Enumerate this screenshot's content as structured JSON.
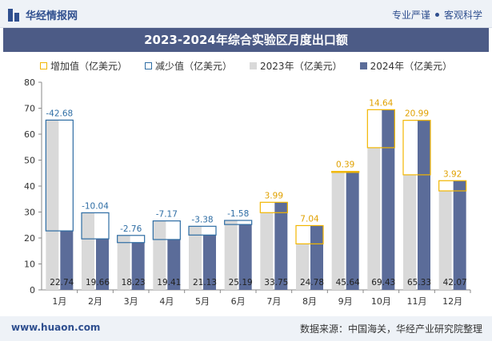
{
  "header": {
    "logo_text": "华经情报网",
    "slogan_left": "专业严谨",
    "slogan_right": "客观科学"
  },
  "footer": {
    "website": "www.huaon.com",
    "source": "数据来源：中国海关，华经产业研究院整理"
  },
  "colors": {
    "increase": "#f2b600",
    "decrease": "#2e6da4",
    "bar2023": "#d9d9d9",
    "bar2024": "#5b6c99",
    "title_bg": "#4c5b86"
  },
  "chart_data": {
    "type": "bar",
    "title": "2023-2024年综合实验区月度出口额",
    "categories": [
      "1月",
      "2月",
      "3月",
      "4月",
      "5月",
      "6月",
      "7月",
      "8月",
      "9月",
      "10月",
      "11月",
      "12月"
    ],
    "series": [
      {
        "name": "2023年（亿美元）",
        "values": [
          65.42,
          29.7,
          20.99,
          26.58,
          24.51,
          26.77,
          29.76,
          17.74,
          45.25,
          54.79,
          44.34,
          38.15
        ]
      },
      {
        "name": "2024年（亿美元）",
        "values": [
          22.74,
          19.66,
          18.23,
          19.41,
          21.13,
          25.19,
          33.75,
          24.78,
          45.64,
          69.43,
          65.33,
          42.07
        ]
      }
    ],
    "change": [
      -42.68,
      -10.04,
      -2.76,
      -7.17,
      -3.38,
      -1.58,
      3.99,
      7.04,
      0.39,
      14.64,
      20.99,
      3.92
    ],
    "change_labels": [
      "-42.68",
      "-10.04",
      "-2.76",
      "-7.17",
      "-3.38",
      "-1.58",
      "3.99",
      "7.04",
      "0.39",
      "14.64",
      "20.99",
      "3.92"
    ],
    "value_labels_2024": [
      "22.74",
      "19.66",
      "18.23",
      "19.41",
      "21.13",
      "25.19",
      "33.75",
      "24.78",
      "45.64",
      "69.43",
      "65.33",
      "42.07"
    ],
    "legend": [
      "增加值（亿美元）",
      "减少值（亿美元）",
      "2023年（亿美元）",
      "2024年（亿美元）"
    ],
    "yticks": [
      "0",
      "10",
      "20",
      "30",
      "40",
      "50",
      "60",
      "70",
      "80"
    ],
    "ylim": [
      0,
      80
    ],
    "grid": false,
    "legend_position": "top-left"
  }
}
